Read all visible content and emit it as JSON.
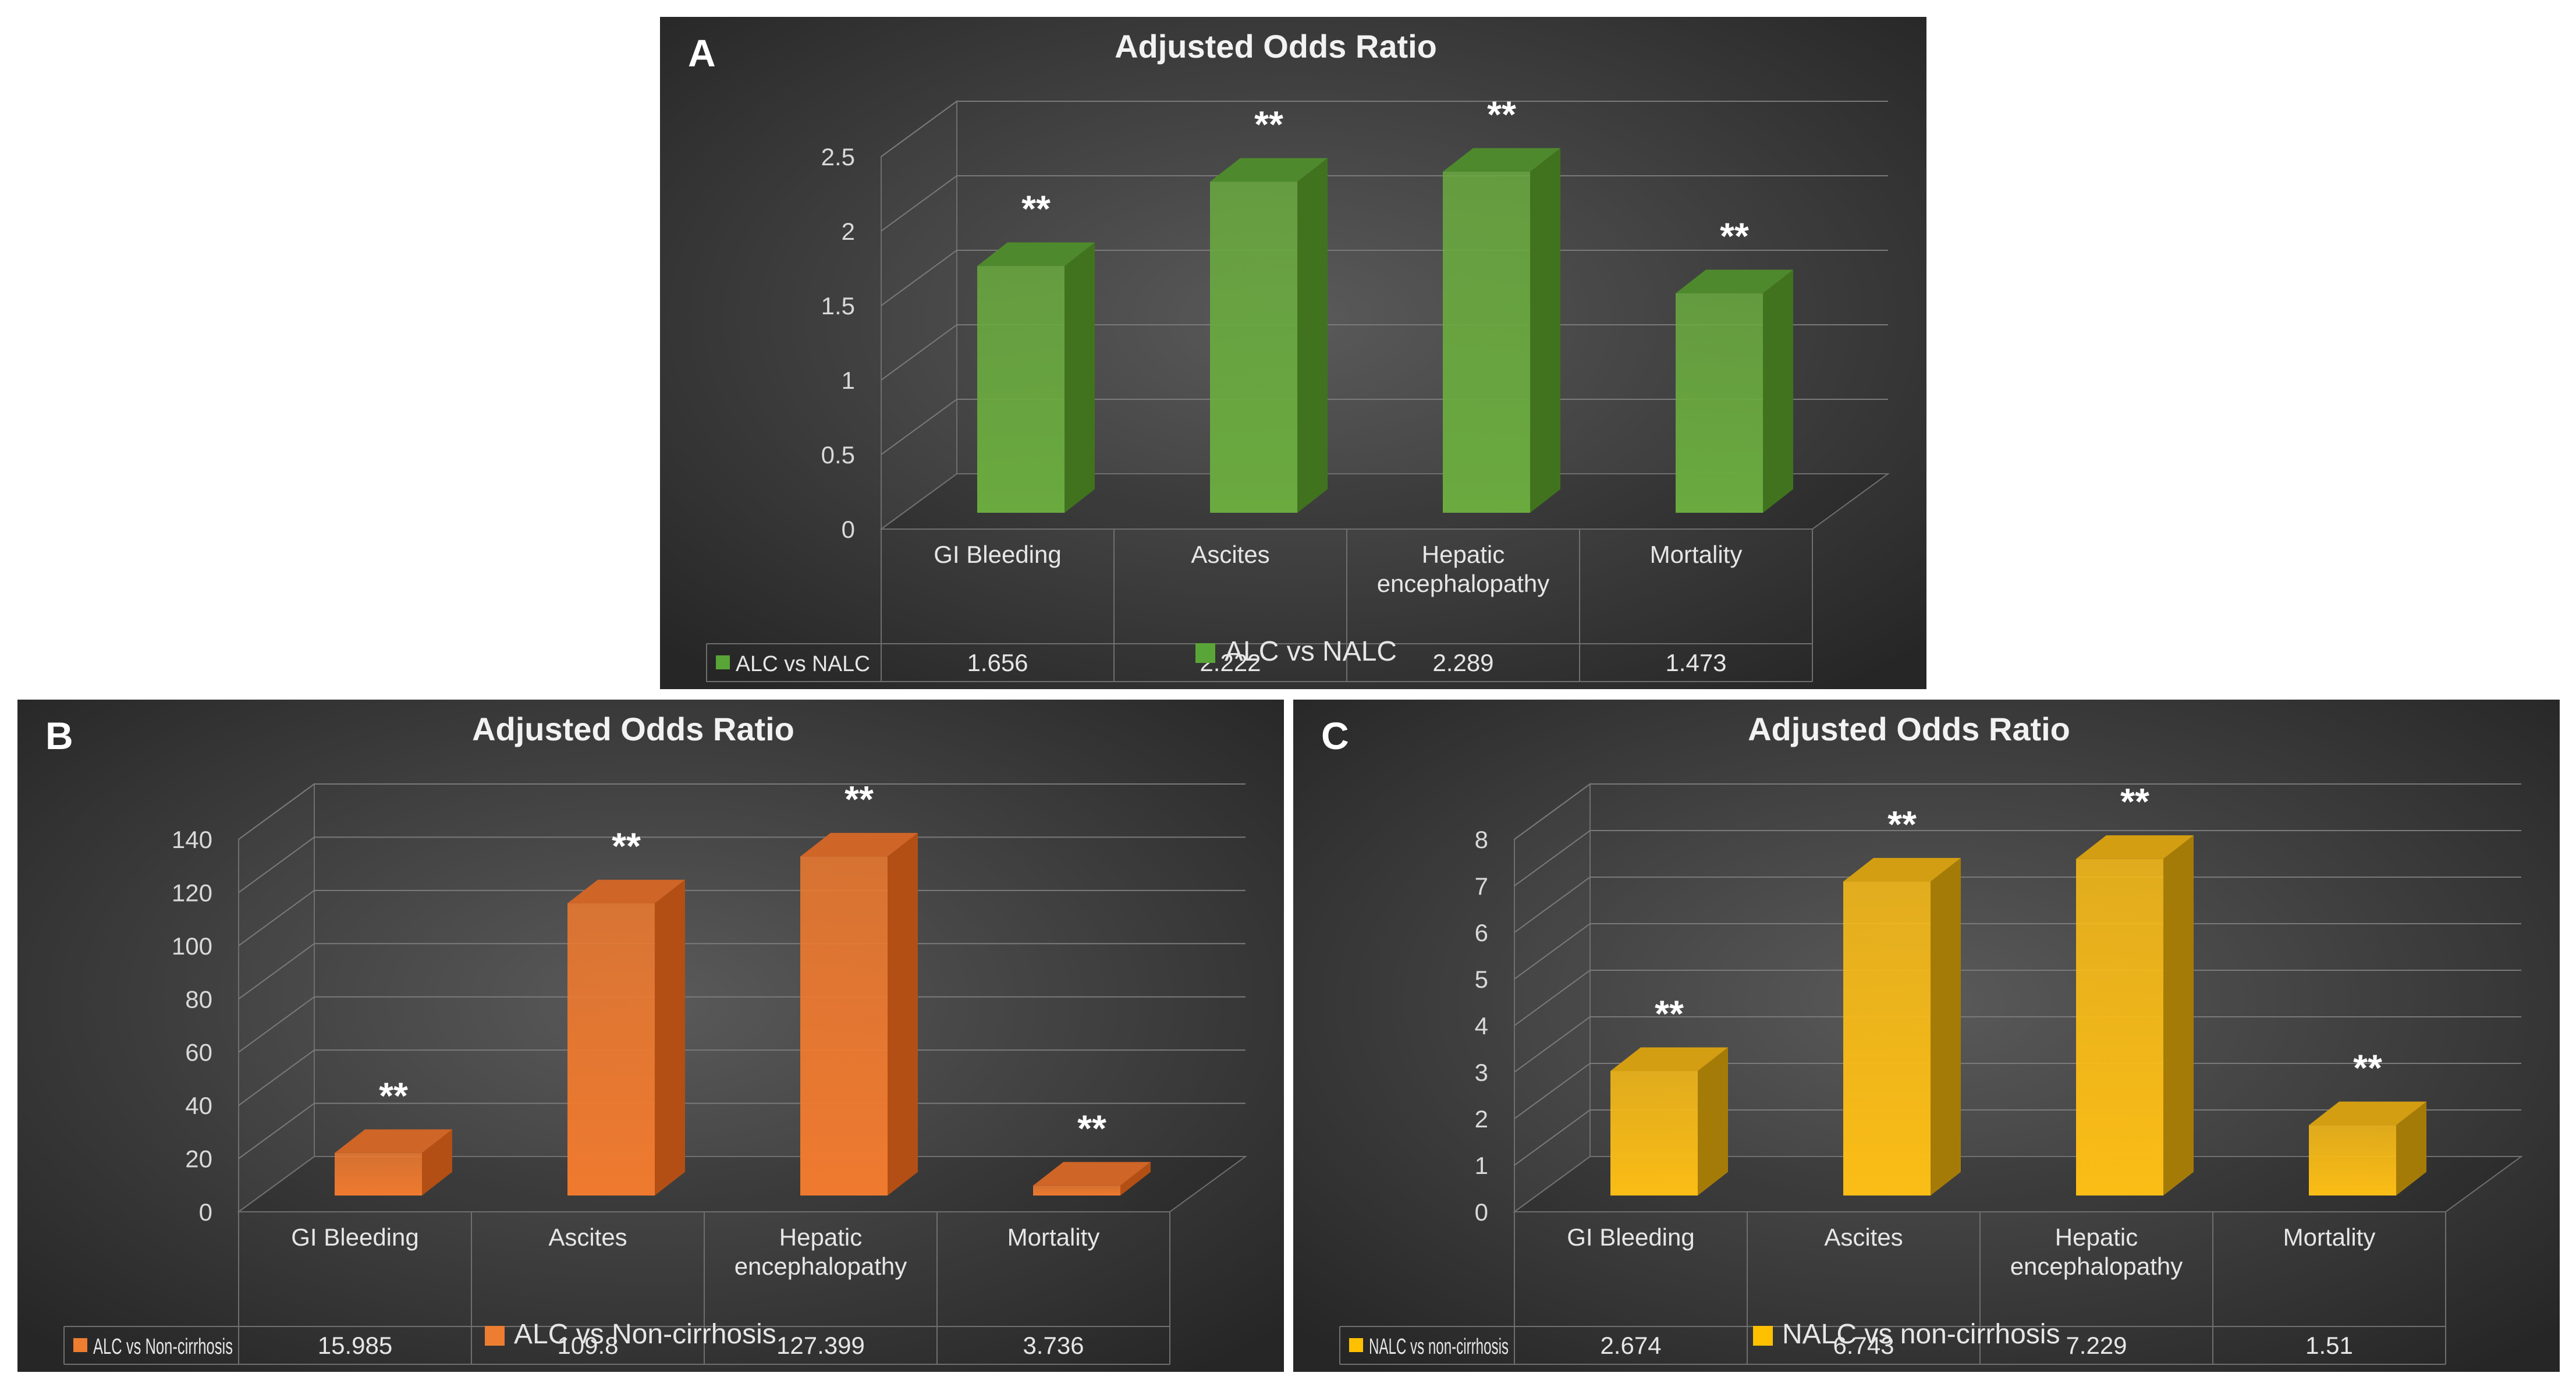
{
  "figure": {
    "panels": [
      {
        "letter": "A"
      },
      {
        "letter": "B"
      },
      {
        "letter": "C"
      }
    ]
  },
  "chart_data": [
    {
      "panel": "A",
      "type": "bar",
      "title": "Adjusted Odds Ratio",
      "categories": [
        "GI Bleeding",
        "Ascites",
        "Hepatic encephalopathy",
        "Mortality"
      ],
      "series": [
        {
          "name": "ALC vs NALC",
          "values": [
            1.656,
            2.222,
            2.289,
            1.473
          ],
          "value_labels": [
            "1.656",
            "2.222",
            "2.289",
            "1.473"
          ]
        }
      ],
      "annotations": [
        "**",
        "**",
        "**",
        "**"
      ],
      "ylim": [
        0,
        2.5
      ],
      "yticks": [
        "0",
        "0.5",
        "1",
        "1.5",
        "2",
        "2.5"
      ],
      "grid": true,
      "legend": "bottom-center",
      "data_table": true,
      "colors": {
        "front": "#6aaa3f",
        "side": "#41731f",
        "top": "#4e8a2d",
        "legend": "#5aa537"
      }
    },
    {
      "panel": "B",
      "type": "bar",
      "title": "Adjusted Odds Ratio",
      "categories": [
        "GI Bleeding",
        "Ascites",
        "Hepatic encephalopathy",
        "Mortality"
      ],
      "series": [
        {
          "name": "ALC vs Non-cirrhosis",
          "values": [
            15.985,
            109.8,
            127.399,
            3.736
          ],
          "value_labels": [
            "15.985",
            "109.8",
            "127.399",
            "3.736"
          ]
        }
      ],
      "annotations": [
        "**",
        "**",
        "**",
        "**"
      ],
      "ylim": [
        0,
        140
      ],
      "yticks": [
        "0",
        "20",
        "40",
        "60",
        "80",
        "100",
        "120",
        "140"
      ],
      "grid": true,
      "legend": "bottom-center",
      "data_table": true,
      "colors": {
        "front": "#ef7a2f",
        "side": "#b34f14",
        "top": "#cf6527",
        "legend": "#ed7d31"
      }
    },
    {
      "panel": "C",
      "type": "bar",
      "title": "Adjusted Odds Ratio",
      "categories": [
        "GI Bleeding",
        "Ascites",
        "Hepatic encephalopathy",
        "Mortality"
      ],
      "series": [
        {
          "name": "NALC vs non-cirrhosis",
          "values": [
            2.674,
            6.743,
            7.229,
            1.51
          ],
          "value_labels": [
            "2.674",
            "6.743",
            "7.229",
            "1.51"
          ]
        }
      ],
      "annotations": [
        "**",
        "**",
        "**",
        "**"
      ],
      "ylim": [
        0,
        8
      ],
      "yticks": [
        "0",
        "1",
        "2",
        "3",
        "4",
        "5",
        "6",
        "7",
        "8"
      ],
      "grid": true,
      "legend": "bottom-center",
      "data_table": true,
      "colors": {
        "front": "#fbbd16",
        "side": "#a57b08",
        "top": "#d39e12",
        "legend": "#ffc000"
      }
    }
  ]
}
